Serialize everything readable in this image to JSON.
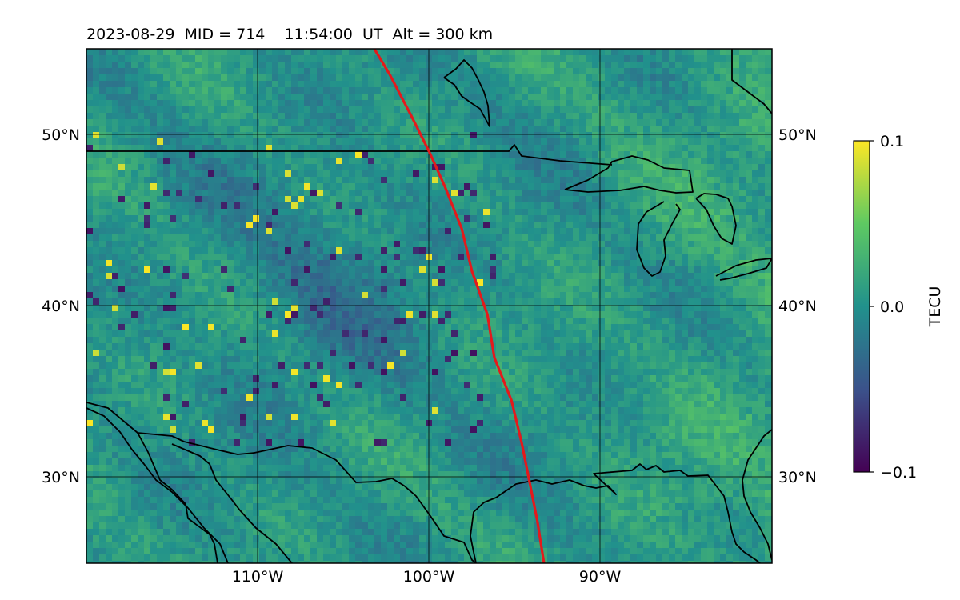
{
  "title": "2023-08-29  MID = 714    11:54:00  UT  Alt = 300 km",
  "map": {
    "lon_range": [
      -120,
      -80
    ],
    "lat_range": [
      25,
      55
    ],
    "lon_ticks": [
      {
        "value": -110,
        "label": "110°W"
      },
      {
        "value": -100,
        "label": "100°W"
      },
      {
        "value": -90,
        "label": "90°W"
      }
    ],
    "lat_ticks": [
      {
        "value": 30,
        "label": "30°N"
      },
      {
        "value": 40,
        "label": "40°N"
      },
      {
        "value": 50,
        "label": "50°N"
      }
    ],
    "field": "TEC perturbation (TECU), viridis colormap",
    "track_color": "#e31a1c",
    "track": [
      [
        -103.2,
        55
      ],
      [
        -102.3,
        53.5
      ],
      [
        -101.0,
        51.0
      ],
      [
        -100.0,
        49.0
      ],
      [
        -99.1,
        47.0
      ],
      [
        -98.1,
        44.5
      ],
      [
        -97.5,
        42.0
      ],
      [
        -96.6,
        39.5
      ],
      [
        -96.2,
        37.0
      ],
      [
        -95.2,
        34.5
      ],
      [
        -94.6,
        32.0
      ],
      [
        -94.2,
        30.0
      ],
      [
        -93.7,
        27.5
      ],
      [
        -93.3,
        25.0
      ]
    ]
  },
  "colorbar": {
    "label": "TECU",
    "min": -0.1,
    "max": 0.1,
    "ticks": [
      {
        "value": 0.1,
        "label": "0.1"
      },
      {
        "value": 0.0,
        "label": "0.0"
      },
      {
        "value": -0.1,
        "label": "−0.1"
      }
    ],
    "colormap": [
      "#440154",
      "#3b528b",
      "#21918c",
      "#5ec962",
      "#fde725"
    ]
  }
}
